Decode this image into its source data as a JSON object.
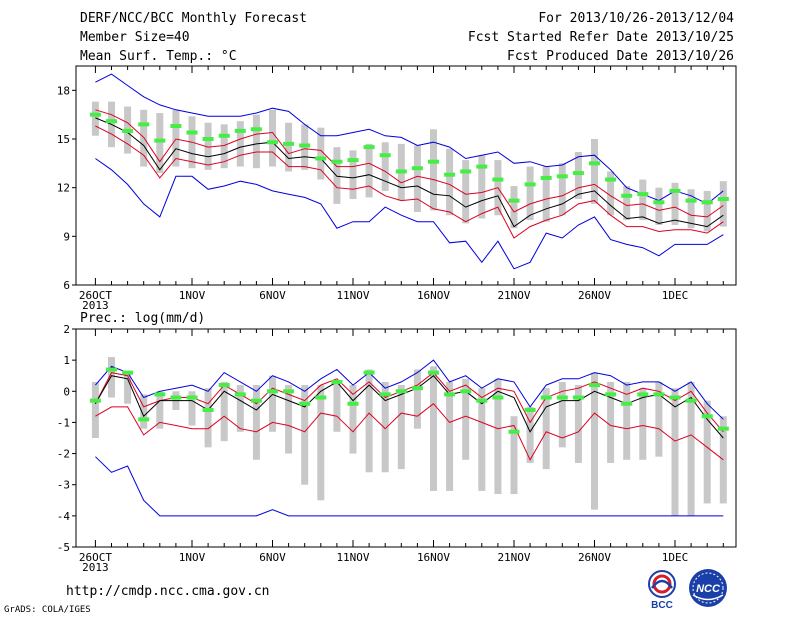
{
  "header": {
    "title": "DERF/NCC/BCC Monthly Forecast",
    "member_size": "Member Size=40",
    "variable": "Mean Surf. Temp.: °C",
    "period": "For 2013/10/26-2013/12/04",
    "fcst_started": "Fcst Started Refer Date 2013/10/25",
    "fcst_produced": "Fcst Produced Date 2013/10/26"
  },
  "footer": {
    "url": "http://cmdp.ncc.cma.gov.cn",
    "grads": "GrADS: COLA/IGES",
    "logo_bcc_label": "BCC",
    "logo_ncc_label": "NCC"
  },
  "colors": {
    "envelope": "#0000dd",
    "spread": "#dd0022",
    "ensemble_mean": "#000000",
    "box": "#c8c8c8",
    "marker": "#44ee44"
  },
  "chart_data": [
    {
      "type": "line",
      "title": "",
      "ylabel": "Mean Surf. Temp.: °C",
      "ylim": [
        6,
        19.5
      ],
      "yticks": [
        6,
        9,
        12,
        15,
        18
      ],
      "x": [
        1,
        2,
        3,
        4,
        5,
        6,
        7,
        8,
        9,
        10,
        11,
        12,
        13,
        14,
        15,
        16,
        17,
        18,
        19,
        20,
        21,
        22,
        23,
        24,
        25,
        26,
        27,
        28,
        29,
        30,
        31,
        32,
        33,
        34,
        35,
        36,
        37,
        38,
        39,
        40
      ],
      "xticks": [
        {
          "x": 1,
          "label": "26OCT"
        },
        {
          "x": 7,
          "label": "1NOV"
        },
        {
          "x": 12,
          "label": "6NOV"
        },
        {
          "x": 17,
          "label": "11NOV"
        },
        {
          "x": 22,
          "label": "16NOV"
        },
        {
          "x": 27,
          "label": "21NOV"
        },
        {
          "x": 32,
          "label": "26NOV"
        },
        {
          "x": 37,
          "label": "1DEC"
        }
      ],
      "xtick_sub": "2013",
      "grid": false,
      "series": [
        {
          "role": "max",
          "values": [
            18.5,
            19.0,
            18.3,
            17.6,
            17.1,
            16.8,
            16.6,
            16.4,
            16.4,
            16.4,
            16.6,
            16.9,
            16.7,
            15.9,
            15.2,
            15.2,
            15.4,
            15.6,
            15.2,
            15.1,
            14.6,
            14.8,
            14.5,
            13.8,
            14.0,
            14.2,
            13.5,
            13.6,
            13.3,
            13.4,
            13.9,
            14.0,
            13.1,
            12.0,
            11.6,
            11.2,
            11.8,
            11.5,
            11.0,
            11.8
          ]
        },
        {
          "role": "upper",
          "values": [
            16.8,
            16.5,
            16.0,
            15.1,
            13.6,
            15.0,
            14.8,
            14.5,
            14.6,
            15.0,
            15.3,
            15.4,
            14.1,
            14.4,
            14.3,
            13.3,
            13.3,
            13.5,
            13.0,
            12.3,
            12.7,
            12.5,
            12.2,
            11.6,
            11.7,
            12.0,
            10.5,
            11.0,
            11.3,
            11.5,
            12.0,
            12.2,
            11.5,
            10.9,
            11.0,
            10.6,
            10.8,
            10.3,
            10.2,
            10.9
          ]
        },
        {
          "role": "mean",
          "values": [
            16.3,
            15.9,
            15.4,
            14.6,
            13.1,
            14.4,
            14.1,
            13.9,
            14.1,
            14.5,
            14.7,
            14.8,
            13.8,
            13.9,
            13.8,
            12.7,
            12.6,
            12.8,
            12.4,
            12.0,
            12.1,
            11.6,
            11.5,
            10.8,
            11.2,
            11.5,
            9.6,
            10.3,
            10.7,
            11.0,
            11.6,
            11.8,
            10.9,
            10.1,
            10.2,
            9.8,
            10.0,
            9.8,
            9.6,
            10.3
          ]
        },
        {
          "role": "lower",
          "values": [
            15.8,
            15.3,
            14.7,
            14.0,
            12.6,
            13.8,
            13.6,
            13.4,
            13.6,
            14.0,
            14.2,
            14.2,
            13.3,
            13.3,
            13.1,
            12.0,
            11.9,
            12.1,
            11.5,
            11.2,
            11.3,
            10.7,
            10.5,
            9.9,
            10.4,
            10.8,
            8.9,
            9.6,
            10.0,
            10.3,
            11.0,
            11.2,
            10.3,
            9.6,
            9.6,
            9.3,
            9.4,
            9.4,
            9.2,
            9.9
          ]
        },
        {
          "role": "min",
          "values": [
            13.8,
            13.1,
            12.2,
            11.0,
            10.2,
            12.7,
            12.7,
            11.9,
            12.1,
            12.4,
            12.2,
            11.8,
            11.6,
            11.4,
            11.0,
            9.5,
            9.9,
            9.9,
            10.8,
            10.3,
            9.9,
            9.9,
            8.6,
            8.7,
            7.4,
            8.7,
            7.0,
            7.4,
            9.2,
            8.9,
            9.7,
            10.2,
            8.8,
            8.5,
            8.3,
            7.8,
            8.5,
            8.5,
            8.5,
            9.1
          ]
        }
      ],
      "boxes": {
        "low": [
          15.2,
          14.5,
          14.1,
          13.3,
          12.9,
          13.3,
          13.2,
          13.1,
          13.2,
          13.3,
          13.2,
          13.3,
          13.0,
          13.1,
          12.5,
          11.0,
          11.3,
          11.4,
          11.8,
          11.2,
          10.5,
          10.6,
          10.3,
          9.8,
          10.1,
          10.3,
          9.5,
          10.0,
          9.9,
          10.3,
          11.3,
          11.0,
          10.3,
          10.0,
          10.0,
          9.7,
          9.7,
          9.5,
          9.3,
          9.6
        ],
        "high": [
          17.3,
          17.3,
          17.0,
          16.8,
          16.6,
          16.8,
          16.4,
          16.0,
          15.9,
          16.1,
          16.5,
          16.8,
          16.0,
          15.9,
          15.7,
          14.5,
          14.3,
          14.7,
          14.8,
          14.7,
          14.6,
          15.6,
          14.4,
          13.7,
          14.0,
          13.7,
          12.1,
          13.3,
          13.3,
          13.5,
          14.2,
          15.0,
          13.0,
          12.1,
          12.5,
          12.0,
          12.3,
          11.9,
          11.8,
          12.4
        ]
      },
      "markers": [
        16.5,
        16.1,
        15.5,
        15.9,
        14.9,
        15.8,
        15.4,
        15.0,
        15.2,
        15.5,
        15.6,
        14.8,
        14.7,
        14.6,
        13.8,
        13.6,
        13.7,
        14.5,
        14.0,
        13.0,
        13.2,
        13.6,
        12.8,
        13.0,
        13.3,
        12.5,
        11.2,
        12.2,
        12.6,
        12.7,
        12.9,
        13.5,
        12.5,
        11.5,
        11.6,
        11.1,
        11.8,
        11.2,
        11.1,
        11.3
      ]
    },
    {
      "type": "line",
      "title": "",
      "ylabel": "Prec.: log(mm/d)",
      "ylim": [
        -5,
        2
      ],
      "yticks": [
        -5,
        -4,
        -3,
        -2,
        -1,
        0,
        1,
        2
      ],
      "x": [
        1,
        2,
        3,
        4,
        5,
        6,
        7,
        8,
        9,
        10,
        11,
        12,
        13,
        14,
        15,
        16,
        17,
        18,
        19,
        20,
        21,
        22,
        23,
        24,
        25,
        26,
        27,
        28,
        29,
        30,
        31,
        32,
        33,
        34,
        35,
        36,
        37,
        38,
        39,
        40
      ],
      "xticks": [
        {
          "x": 1,
          "label": "26OCT"
        },
        {
          "x": 7,
          "label": "1NOV"
        },
        {
          "x": 12,
          "label": "6NOV"
        },
        {
          "x": 17,
          "label": "11NOV"
        },
        {
          "x": 22,
          "label": "16NOV"
        },
        {
          "x": 27,
          "label": "21NOV"
        },
        {
          "x": 32,
          "label": "26NOV"
        },
        {
          "x": 37,
          "label": "1DEC"
        }
      ],
      "xtick_sub": "2013",
      "grid": false,
      "series": [
        {
          "role": "max",
          "values": [
            0.2,
            0.8,
            0.6,
            -0.2,
            0.0,
            0.1,
            0.2,
            0.0,
            0.6,
            0.3,
            0.0,
            0.5,
            0.3,
            0.0,
            0.4,
            0.7,
            0.2,
            0.6,
            0.1,
            0.3,
            0.6,
            1.0,
            0.3,
            0.5,
            0.1,
            0.4,
            0.3,
            -0.5,
            0.2,
            0.4,
            0.4,
            0.6,
            0.5,
            0.2,
            0.3,
            0.3,
            0.0,
            0.3,
            -0.4,
            -0.9
          ]
        },
        {
          "role": "upper",
          "values": [
            -0.4,
            0.6,
            0.5,
            -0.5,
            -0.3,
            -0.2,
            -0.2,
            -0.4,
            0.2,
            -0.1,
            -0.4,
            0.1,
            -0.1,
            -0.3,
            0.2,
            0.4,
            -0.1,
            0.3,
            -0.2,
            0.0,
            0.2,
            0.6,
            0.0,
            0.2,
            -0.2,
            0.1,
            0.0,
            -1.0,
            -0.2,
            0.0,
            0.1,
            0.3,
            0.1,
            -0.1,
            0.1,
            0.0,
            -0.3,
            0.0,
            -0.7,
            -1.3
          ]
        },
        {
          "role": "mean",
          "values": [
            -0.4,
            0.5,
            0.4,
            -0.8,
            -0.3,
            -0.3,
            -0.3,
            -0.6,
            0.0,
            -0.3,
            -0.6,
            -0.1,
            -0.3,
            -0.5,
            0.0,
            0.3,
            -0.3,
            0.2,
            -0.3,
            -0.1,
            0.1,
            0.5,
            -0.1,
            0.0,
            -0.4,
            0.0,
            -0.2,
            -1.3,
            -0.5,
            -0.3,
            -0.3,
            0.0,
            -0.2,
            -0.4,
            -0.2,
            -0.1,
            -0.5,
            -0.2,
            -0.9,
            -1.5
          ]
        },
        {
          "role": "lower",
          "values": [
            -0.8,
            -0.5,
            -0.5,
            -1.4,
            -1.0,
            -1.1,
            -1.2,
            -1.2,
            -0.8,
            -1.2,
            -1.3,
            -1.0,
            -1.1,
            -1.3,
            -0.7,
            -0.8,
            -1.3,
            -0.7,
            -1.2,
            -0.7,
            -0.8,
            -0.4,
            -1.0,
            -0.8,
            -1.0,
            -1.2,
            -1.1,
            -2.2,
            -1.3,
            -1.5,
            -1.3,
            -0.7,
            -1.1,
            -1.2,
            -1.1,
            -1.2,
            -1.6,
            -1.4,
            -1.8,
            -2.2
          ]
        },
        {
          "role": "min",
          "values": [
            -2.1,
            -2.6,
            -2.4,
            -3.5,
            -4.0,
            -4.0,
            -4.0,
            -4.0,
            -4.0,
            -4.0,
            -4.0,
            -3.8,
            -4.0,
            -4.0,
            -4.0,
            -4.0,
            -4.0,
            -4.0,
            -4.0,
            -4.0,
            -4.0,
            -4.0,
            -4.0,
            -4.0,
            -4.0,
            -4.0,
            -4.0,
            -4.0,
            -4.0,
            -4.0,
            -4.0,
            -4.0,
            -4.0,
            -4.0,
            -4.0,
            -4.0,
            -4.0,
            -4.0,
            -4.0,
            -4.0
          ]
        }
      ],
      "boxes": {
        "low": [
          -1.5,
          -0.2,
          -0.4,
          -1.2,
          -1.2,
          -0.6,
          -1.1,
          -1.8,
          -1.6,
          -1.3,
          -2.2,
          -1.3,
          -2.0,
          -3.0,
          -3.5,
          -1.3,
          -2.0,
          -2.6,
          -2.6,
          -2.5,
          -1.2,
          -3.2,
          -3.2,
          -2.2,
          -3.2,
          -3.3,
          -3.3,
          -2.3,
          -2.5,
          -1.8,
          -2.3,
          -3.8,
          -2.3,
          -2.2,
          -2.2,
          -2.1,
          -4.0,
          -4.0,
          -3.6,
          -3.6
        ],
        "high": [
          0.3,
          1.1,
          0.6,
          -0.1,
          0.0,
          0.0,
          0.0,
          0.1,
          0.3,
          0.2,
          0.2,
          0.5,
          0.2,
          0.2,
          0.2,
          0.3,
          0.2,
          0.7,
          0.3,
          0.2,
          0.7,
          0.8,
          0.3,
          0.4,
          0.1,
          0.4,
          -0.8,
          -0.5,
          0.1,
          0.3,
          0.2,
          0.6,
          0.3,
          0.3,
          0.1,
          0.3,
          0.1,
          0.3,
          -0.3,
          -0.8
        ]
      },
      "markers": [
        -0.3,
        0.7,
        0.6,
        -0.9,
        -0.1,
        -0.2,
        -0.2,
        -0.6,
        0.2,
        -0.1,
        -0.3,
        0.0,
        0.0,
        -0.4,
        -0.2,
        0.3,
        -0.4,
        0.6,
        -0.1,
        0.0,
        0.1,
        0.6,
        -0.1,
        0.0,
        -0.3,
        -0.2,
        -1.3,
        -0.6,
        -0.2,
        -0.2,
        -0.2,
        0.2,
        -0.1,
        -0.4,
        -0.1,
        -0.1,
        -0.2,
        -0.3,
        -0.8,
        -1.2
      ]
    }
  ]
}
